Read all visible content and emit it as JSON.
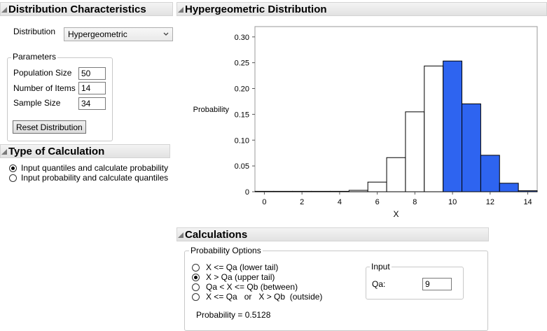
{
  "distribution_characteristics": {
    "title": "Distribution Characteristics",
    "distribution_label": "Distribution",
    "distribution_value": "Hypergeometric",
    "parameters": {
      "legend": "Parameters",
      "population_size_label": "Population Size",
      "population_size_value": "50",
      "number_of_items_label": "Number of Items",
      "number_of_items_value": "14",
      "sample_size_label": "Sample Size",
      "sample_size_value": "34",
      "reset_button": "Reset Distribution"
    }
  },
  "type_of_calculation": {
    "title": "Type of Calculation",
    "options": [
      {
        "label": "Input quantiles and calculate probability",
        "selected": true
      },
      {
        "label": "Input probability and calculate quantiles",
        "selected": false
      }
    ]
  },
  "plot": {
    "title": "Hypergeometric Distribution"
  },
  "chart_data": {
    "type": "bar",
    "ylabel": "Probability",
    "xlabel": "X",
    "xlim": [
      -0.5,
      14.5
    ],
    "ylim": [
      0,
      0.32
    ],
    "x_ticks": [
      "0",
      "2",
      "4",
      "6",
      "8",
      "10",
      "12",
      "14"
    ],
    "y_ticks": [
      "0",
      "0.05",
      "0.10",
      "0.15",
      "0.20",
      "0.25",
      "0.30"
    ],
    "x": [
      0,
      1,
      2,
      3,
      4,
      5,
      6,
      7,
      8,
      9,
      10,
      11,
      12,
      13,
      14
    ],
    "values": [
      0,
      0,
      0,
      0,
      0.0003,
      0.0027,
      0.0187,
      0.0661,
      0.1548,
      0.2437,
      0.2533,
      0.1703,
      0.0707,
      0.0165,
      0.0019
    ],
    "shaded_from": 10,
    "colors": {
      "shaded": "#2e64f0",
      "unshaded": "#ffffff",
      "outline": "#000000"
    }
  },
  "calculations": {
    "title": "Calculations",
    "probability_options_legend": "Probability Options",
    "options": [
      {
        "label": "X <= Qa (lower tail)",
        "selected": false
      },
      {
        "label": "X > Qa (upper tail)",
        "selected": true
      },
      {
        "label": "Qa < X <= Qb (between)",
        "selected": false
      },
      {
        "label": "X <= Qa   or   X > Qb  (outside)",
        "selected": false
      }
    ],
    "input_legend": "Input",
    "qa_label": "Qa:",
    "qa_value": "9",
    "probability_text": "Probability = 0.5128"
  }
}
